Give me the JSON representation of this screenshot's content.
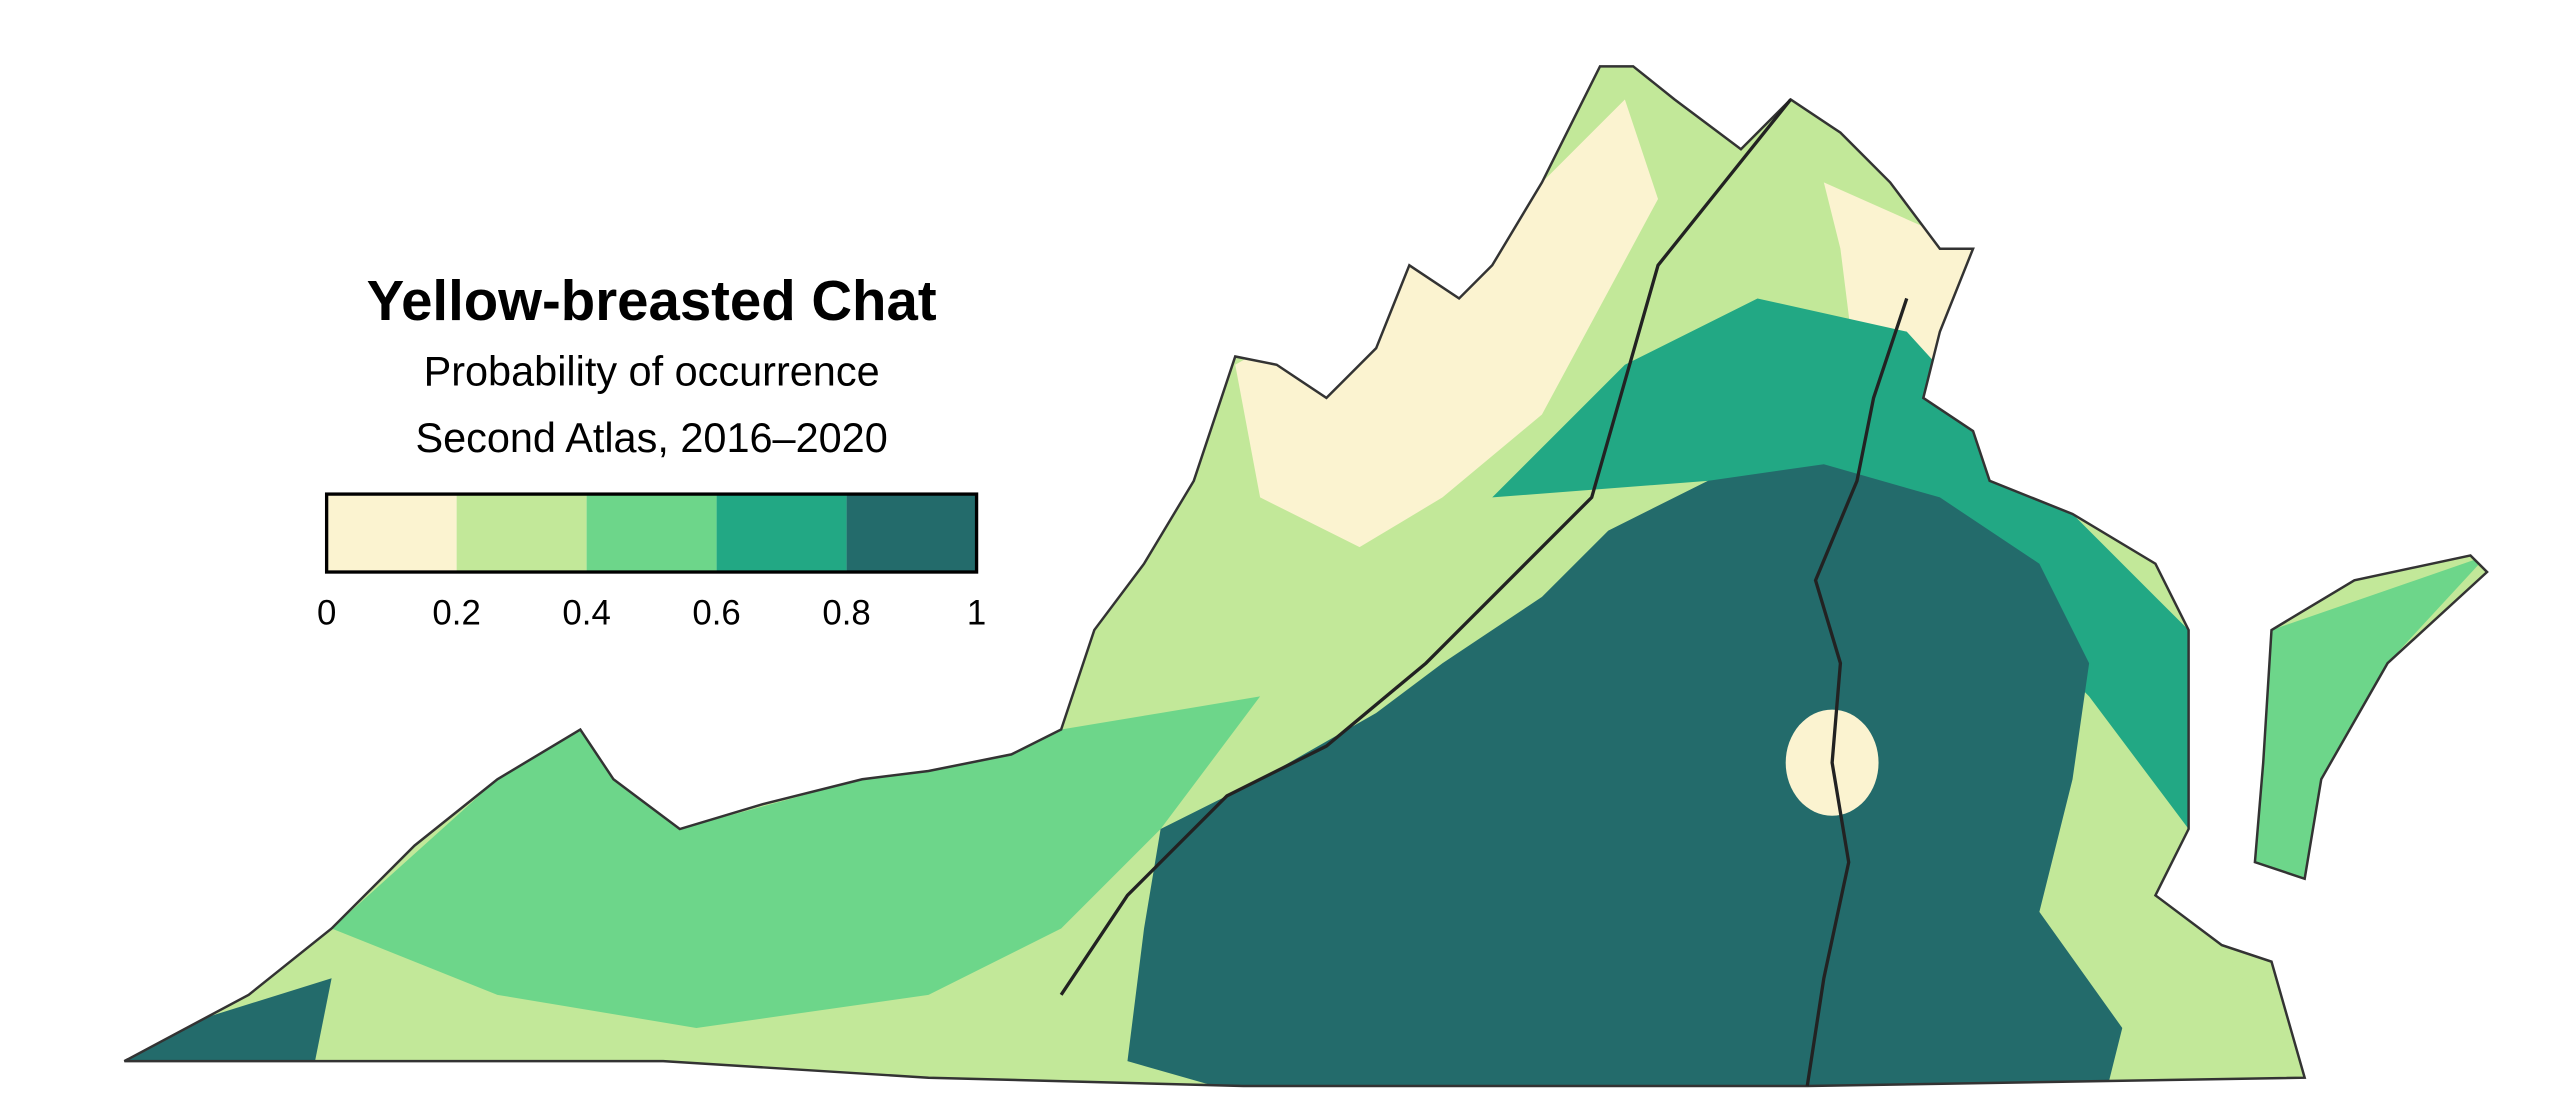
{
  "title": "Yellow-breasted Chat",
  "subtitle": [
    "Probability of occurrence",
    "Second Atlas, 2016–2020"
  ],
  "legend": {
    "colors": [
      "#fbf3d0",
      "#c2e899",
      "#6dd68a",
      "#22a884",
      "#236b6b"
    ],
    "ticks": [
      0,
      0.2,
      0.4,
      0.6,
      0.8,
      1
    ]
  }
}
